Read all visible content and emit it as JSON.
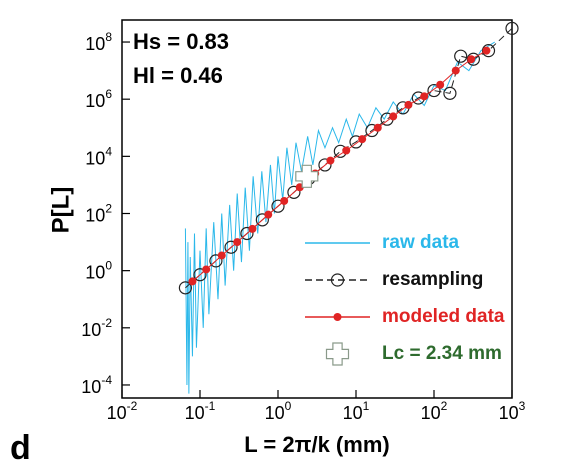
{
  "chart_data": {
    "type": "line",
    "x_scale": "log",
    "y_scale": "log",
    "xlabel": "L = 2π/k (mm)",
    "ylabel": "P[L]",
    "annotations": [
      "Hs = 0.83",
      "Hl = 0.46"
    ],
    "panel_label": "d",
    "xlim": [
      0.01,
      1000
    ],
    "ylim": [
      3.5e-05,
      590000000
    ],
    "xticks": [
      {
        "value": 0.01,
        "label": "10^-2"
      },
      {
        "value": 0.1,
        "label": "10^-1"
      },
      {
        "value": 1,
        "label": "10^0"
      },
      {
        "value": 10,
        "label": "10^1"
      },
      {
        "value": 100,
        "label": "10^2"
      },
      {
        "value": 1000,
        "label": "10^3"
      }
    ],
    "yticks": [
      {
        "value": 0.0001,
        "label": "10^-4"
      },
      {
        "value": 0.01,
        "label": "10^-2"
      },
      {
        "value": 1,
        "label": "10^0"
      },
      {
        "value": 100,
        "label": "10^2"
      },
      {
        "value": 10000,
        "label": "10^4"
      },
      {
        "value": 1000000,
        "label": "10^6"
      },
      {
        "value": 100000000,
        "label": "10^8"
      }
    ],
    "series": [
      {
        "name": "raw data",
        "color": "#2bb8ea",
        "text_color": "#2bb8ea",
        "line": "solid",
        "marker": "none",
        "x": [
          0.065,
          0.068,
          0.07,
          0.072,
          0.075,
          0.08,
          0.085,
          0.09,
          0.1,
          0.11,
          0.12,
          0.13,
          0.15,
          0.17,
          0.19,
          0.21,
          0.24,
          0.27,
          0.3,
          0.34,
          0.38,
          0.43,
          0.48,
          0.55,
          0.62,
          0.7,
          0.8,
          0.9,
          1.0,
          1.15,
          1.3,
          1.5,
          1.7,
          2.0,
          2.4,
          2.8,
          3.3,
          4,
          5,
          6,
          7.5,
          9,
          11,
          14,
          18,
          23,
          30,
          40,
          55,
          75,
          100,
          140,
          200,
          280,
          400,
          600
        ],
        "values": [
          30,
          0.0001,
          10,
          5e-05,
          3,
          0.001,
          20,
          0.002,
          5,
          0.01,
          30,
          0.03,
          50,
          0.1,
          100,
          0.3,
          200,
          1,
          500,
          2,
          800,
          5,
          2000,
          20,
          3000,
          50,
          5000,
          100,
          10000,
          300,
          20000,
          1000,
          30000,
          3000,
          50000,
          5000,
          80000,
          20000,
          100000,
          30000,
          200000,
          50000,
          300000,
          100000,
          500000,
          200000,
          800000,
          300000,
          1500000,
          600000,
          3000000,
          2000000,
          20000000,
          10000000,
          50000000,
          100000000
        ]
      },
      {
        "name": "resampling",
        "color": "#222222",
        "text_color": "#111111",
        "line": "dashed",
        "marker": "circle",
        "x": [
          0.065,
          0.1,
          0.16,
          0.25,
          0.4,
          0.63,
          1,
          1.6,
          2.5,
          4,
          6.3,
          10,
          16,
          25,
          40,
          63,
          100,
          160,
          220,
          320,
          500,
          1000
        ],
        "values": [
          0.25,
          0.72,
          2.2,
          6.6,
          20,
          60,
          180,
          550,
          1700,
          5000,
          15000,
          32000,
          80000,
          200000,
          500000,
          1100000,
          2000000,
          1600000,
          32000000,
          25000000,
          50000000,
          300000000
        ]
      },
      {
        "name": "modeled data",
        "color": "#e02424",
        "text_color": "#e02424",
        "line": "solid",
        "marker": "dot",
        "x": [
          0.08,
          0.12,
          0.19,
          0.3,
          0.47,
          0.75,
          1.2,
          1.9,
          3,
          4.7,
          7.5,
          12,
          19,
          30,
          47,
          75,
          120,
          190,
          300,
          470
        ],
        "values": [
          0.42,
          1.1,
          3.4,
          10,
          29,
          91,
          275,
          830,
          2500,
          7100,
          16000,
          40000,
          100000,
          250000,
          630000,
          1260000,
          3200000,
          10000000,
          25000000,
          50000000
        ]
      },
      {
        "name": "Lc = 2.34 mm",
        "color": "#ffffff",
        "text_color": "#2e6b2e",
        "line": "none",
        "marker": "cross",
        "x": [
          2.34
        ],
        "values": [
          2000
        ]
      }
    ]
  }
}
